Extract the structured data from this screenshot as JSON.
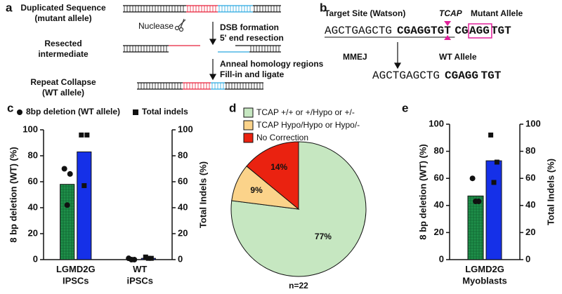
{
  "diagram_a": {
    "panel": "a",
    "step1": "Duplicated Sequence\n(mutant allele)",
    "nuclease": "Nuclease",
    "arrow1": "DSB formation\n5' end resection",
    "step2": "Resected\nintermediate",
    "arrow2": "Anneal homology regions\nFill-in and ligate",
    "step3": "Repeat Collapse\n(WT allele)"
  },
  "diagram_b": {
    "panel": "b",
    "title": "Target Site (Watson)",
    "gene": "TCAP",
    "mutant_label": "Mutant Allele",
    "mutant_seq": [
      "AGCTGAGCTG",
      "CGAGGTGT",
      "CG",
      "AGG",
      "TGT"
    ],
    "method": "MMEJ",
    "wt_label": "WT Allele",
    "wt_seq": [
      "AGCTGAGCTG",
      "CGAGG",
      "TGT"
    ]
  },
  "chart_data": [
    {
      "type": "bar",
      "panel": "c",
      "categories": [
        "LGMD2G\nIPSCs",
        "WT\niPSCs"
      ],
      "ylabel": "8 bp deletion (WT) (%)",
      "y2label": "Total Indels (%)",
      "ylim": [
        0,
        100
      ],
      "yticks": [
        0,
        20,
        40,
        60,
        80,
        100
      ],
      "y2lim": [
        0,
        100
      ],
      "y2ticks": [
        0,
        20,
        40,
        60,
        80,
        100
      ],
      "legend": "top",
      "series": [
        {
          "name": "8bp deletion (WT allele)",
          "color": "#1f8f4a",
          "marker": "circle",
          "values": [
            58,
            0
          ],
          "points": [
            [
              70,
              66,
              42
            ],
            [
              1,
              0,
              0
            ]
          ]
        },
        {
          "name": "Total indels",
          "color": "#1530e8",
          "marker": "square",
          "axis": "y2",
          "values": [
            83,
            1
          ],
          "points": [
            [
              96,
              96,
              57
            ],
            [
              2,
              1,
              1
            ]
          ]
        }
      ]
    },
    {
      "type": "pie",
      "panel": "d",
      "categories": [
        "TCAP +/+ or +/Hypo or +/-",
        "TCAP Hypo/Hypo or Hypo/-",
        "No Correction"
      ],
      "values": [
        77,
        9,
        14
      ],
      "value_labels": [
        "77%",
        "9%",
        "14%"
      ],
      "colors": [
        "#c6e7c1",
        "#fbd38a",
        "#ea2210"
      ],
      "caption": "n=22"
    },
    {
      "type": "bar",
      "panel": "e",
      "categories": [
        "LGMD2G\nMyoblasts"
      ],
      "ylabel": "8 bp deletion (WT) (%)",
      "y2label": "Total Indels (%)",
      "ylim": [
        0,
        100
      ],
      "yticks": [
        0,
        20,
        40,
        60,
        80,
        100
      ],
      "y2lim": [
        0,
        100
      ],
      "y2ticks": [
        0,
        20,
        40,
        60,
        80,
        100
      ],
      "series": [
        {
          "color": "#1f8f4a",
          "marker": "circle",
          "values": [
            47
          ],
          "points": [
            [
              60,
              43,
              43
            ]
          ]
        },
        {
          "color": "#1530e8",
          "marker": "square",
          "axis": "y2",
          "values": [
            73
          ],
          "points": [
            [
              92,
              72,
              57
            ]
          ]
        }
      ]
    }
  ]
}
